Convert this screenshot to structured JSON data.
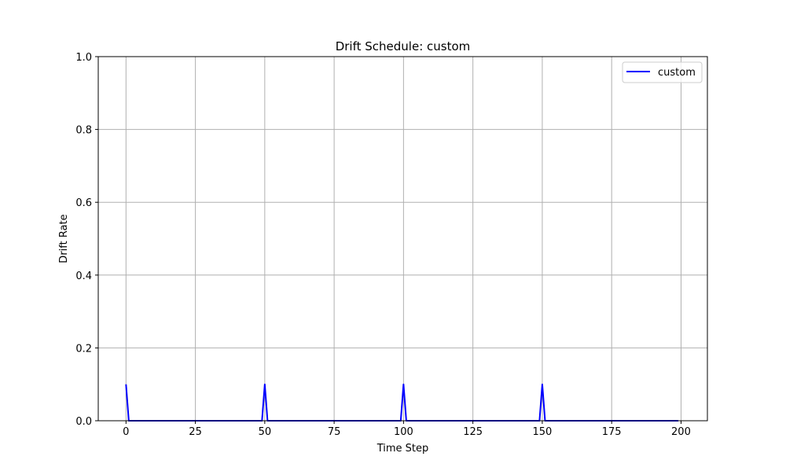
{
  "chart_data": {
    "type": "line",
    "title": "Drift Schedule: custom",
    "xlabel": "Time Step",
    "ylabel": "Drift Rate",
    "xlim": [
      -10,
      209.5
    ],
    "ylim": [
      0,
      1
    ],
    "xticks": [
      0,
      25,
      50,
      75,
      100,
      125,
      150,
      175,
      200
    ],
    "yticks": [
      0.0,
      0.2,
      0.4,
      0.6,
      0.8,
      1.0
    ],
    "xtick_labels": [
      "0",
      "25",
      "50",
      "75",
      "100",
      "125",
      "150",
      "175",
      "200"
    ],
    "ytick_labels": [
      "0.0",
      "0.2",
      "0.4",
      "0.6",
      "0.8",
      "1.0"
    ],
    "grid": true,
    "legend_position": "top-right",
    "series": [
      {
        "name": "custom",
        "color": "#0000ff",
        "x": [
          0,
          1,
          49,
          50,
          51,
          99,
          100,
          101,
          149,
          150,
          151,
          199
        ],
        "y": [
          0.1,
          0,
          0,
          0.1,
          0,
          0,
          0.1,
          0,
          0,
          0.1,
          0,
          0
        ]
      }
    ]
  }
}
